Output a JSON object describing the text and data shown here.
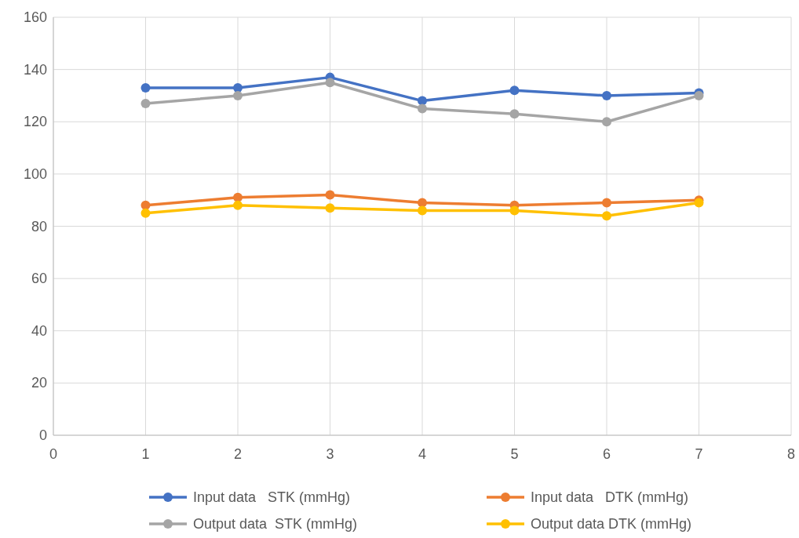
{
  "chart_data": {
    "type": "line",
    "x": [
      1,
      2,
      3,
      4,
      5,
      6,
      7
    ],
    "xlim": [
      0,
      8
    ],
    "xticks": [
      0,
      1,
      2,
      3,
      4,
      5,
      6,
      7,
      8
    ],
    "ylim": [
      0,
      160
    ],
    "yticks": [
      0,
      20,
      40,
      60,
      80,
      100,
      120,
      140,
      160
    ],
    "grid": true,
    "legend": "bottom",
    "marker": "circle",
    "line_style": "solid",
    "series": [
      {
        "name": "Input data   STK (mmHg)",
        "color": "#4472c4",
        "values": [
          133,
          133,
          137,
          128,
          132,
          130,
          131
        ]
      },
      {
        "name": "Input data   DTK (mmHg)",
        "color": "#ed7d31",
        "values": [
          88,
          91,
          92,
          89,
          88,
          89,
          90
        ]
      },
      {
        "name": "Output data  STK (mmHg)",
        "color": "#a5a5a5",
        "values": [
          127,
          130,
          135,
          125,
          123,
          120,
          130
        ]
      },
      {
        "name": "Output data DTK (mmHg)",
        "color": "#ffc000",
        "values": [
          85,
          88,
          87,
          86,
          86,
          84,
          89
        ]
      }
    ]
  }
}
